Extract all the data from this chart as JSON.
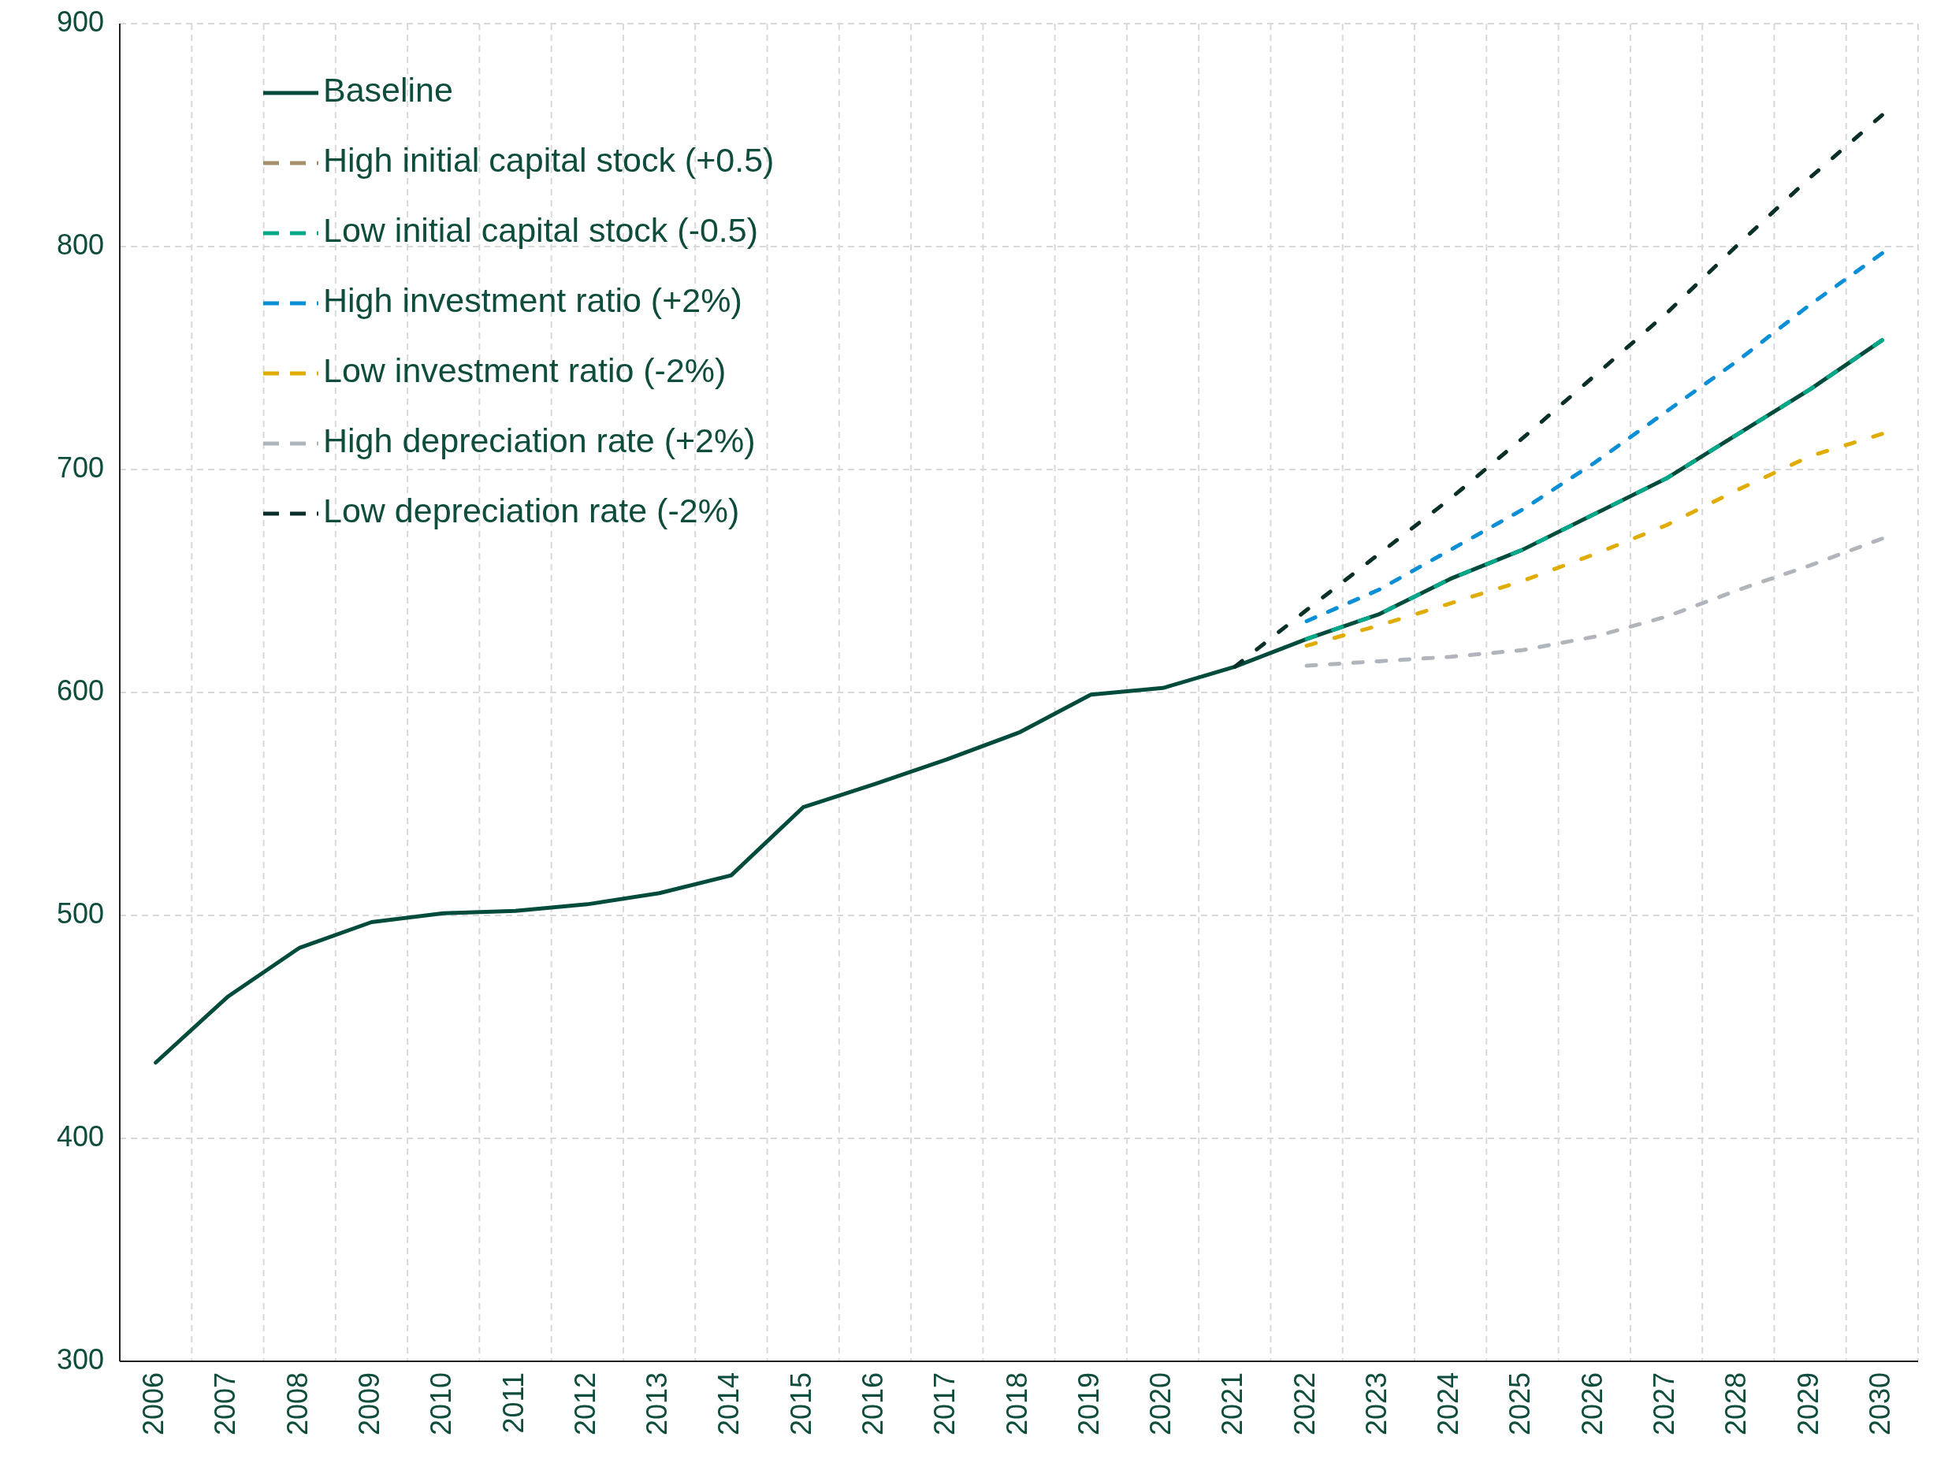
{
  "chart_data": {
    "type": "line",
    "categories": [
      "2006",
      "2007",
      "2008",
      "2009",
      "2010",
      "2011",
      "2012",
      "2013",
      "2014",
      "2015",
      "2016",
      "2017",
      "2018",
      "2019",
      "2020",
      "2021",
      "2022",
      "2023",
      "2024",
      "2025",
      "2026",
      "2027",
      "2028",
      "2029",
      "2030"
    ],
    "ylim": [
      300,
      900
    ],
    "yticks": [
      300,
      400,
      500,
      600,
      700,
      800,
      900
    ],
    "grid": true,
    "legend": "top left",
    "marker": "none",
    "series": [
      {
        "name": "Baseline",
        "color": "#004b3c",
        "line_style": "solid",
        "values": [
          434,
          463.5,
          485.5,
          497,
          501,
          502,
          505,
          510,
          518,
          548.5,
          559,
          570,
          582,
          599,
          602,
          611.5,
          624,
          635,
          651,
          664,
          680,
          696,
          716,
          736,
          758
        ]
      },
      {
        "name": "High initial capital stock (+0.5)",
        "color": "#a39068",
        "line_style": "dashed",
        "values": [
          null,
          null,
          null,
          null,
          null,
          null,
          null,
          null,
          null,
          null,
          null,
          null,
          null,
          null,
          null,
          null,
          null,
          null,
          null,
          null,
          null,
          null,
          null,
          null,
          null
        ]
      },
      {
        "name": "Low initial capital stock (-0.5)",
        "color": "#00a88a",
        "line_style": "dashed",
        "values": [
          null,
          null,
          null,
          null,
          null,
          null,
          null,
          null,
          null,
          null,
          null,
          null,
          null,
          null,
          null,
          null,
          624,
          635,
          651,
          664,
          680,
          696,
          716,
          736,
          758
        ]
      },
      {
        "name": "High investment ratio (+2%)",
        "color": "#0a8fd6",
        "line_style": "dashed",
        "values": [
          null,
          null,
          null,
          null,
          null,
          null,
          null,
          null,
          null,
          null,
          null,
          null,
          null,
          null,
          null,
          null,
          632,
          646,
          664,
          682,
          703,
          726,
          749,
          774,
          797
        ]
      },
      {
        "name": "Low investment ratio (-2%)",
        "color": "#e0ac00",
        "line_style": "dashed",
        "values": [
          null,
          null,
          null,
          null,
          null,
          null,
          null,
          null,
          null,
          null,
          null,
          null,
          null,
          null,
          null,
          null,
          621,
          630,
          640,
          650,
          662,
          675,
          691,
          706,
          716
        ]
      },
      {
        "name": "High depreciation rate (+2%)",
        "color": "#b0b5bc",
        "line_style": "dashed",
        "values": [
          null,
          null,
          null,
          null,
          null,
          null,
          null,
          null,
          null,
          null,
          null,
          null,
          null,
          null,
          null,
          null,
          612,
          614,
          616,
          619,
          625,
          634,
          646,
          657,
          669
        ]
      },
      {
        "name": "Low depreciation rate (-2%)",
        "color": "#0a2e28",
        "line_style": "dashed",
        "values": [
          null,
          null,
          null,
          null,
          null,
          null,
          null,
          null,
          null,
          null,
          null,
          null,
          null,
          null,
          null,
          611.5,
          637,
          662,
          687,
          714,
          742,
          770,
          801,
          831,
          859
        ]
      }
    ]
  }
}
